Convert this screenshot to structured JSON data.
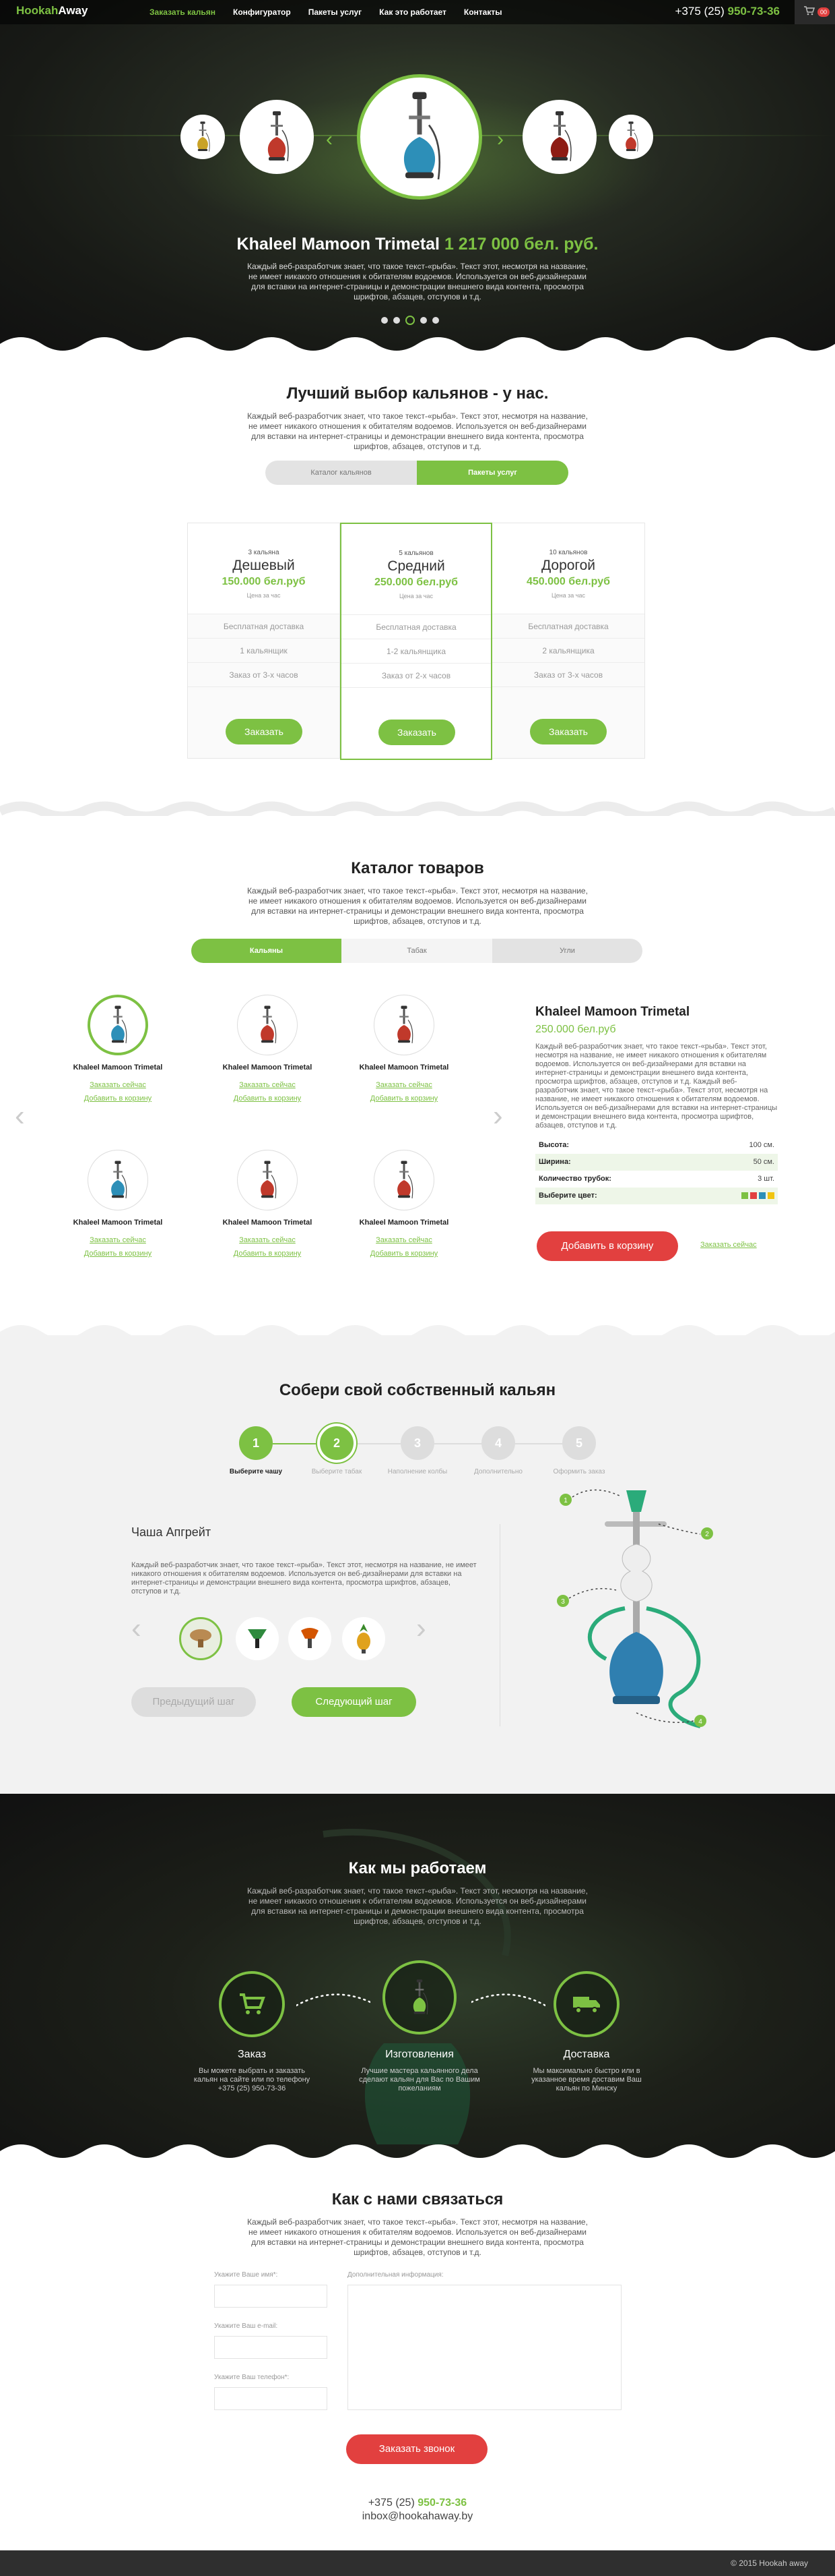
{
  "nav": {
    "logo_a": "Hookah",
    "logo_b": "Away",
    "items": [
      "Заказать кальян",
      "Конфигуратор",
      "Пакеты услуг",
      "Как это работает",
      "Контакты"
    ],
    "phone_prefix": "+375 (25) ",
    "phone_number": "950-73-36",
    "cart_count": "00"
  },
  "hero": {
    "title_name": "Khaleel Mamoon Trimetal",
    "title_price": "1 217 000 бел. руб.",
    "text": "Каждый веб-разработчик знает, что такое текст-«рыба». Текст этот, несмотря на название, не имеет никакого отношения к обитателям водоемов. Используется он веб-дизайнерами для вставки на интернет-страницы и демонстрации внешнего вида контента, просмотра шрифтов, абзацев, отступов и т.д.",
    "active_slide": 3,
    "slides": 5
  },
  "pricing": {
    "title": "Лучший выбор кальянов - у нас.",
    "text": "Каждый веб-разработчик знает, что такое текст-«рыба». Текст этот, несмотря на название, не имеет никакого отношения к обитателям водоемов. Используется он веб-дизайнерами для вставки на интернет-страницы и демонстрации внешнего вида контента, просмотра шрифтов, абзацев, отступов и т.д.",
    "tabs": [
      "Каталог кальянов",
      "Пакеты услуг"
    ],
    "active_tab": 1,
    "plans": [
      {
        "count": "3 кальяна",
        "name": "Дешевый",
        "price": "150.000 бел.руб",
        "note": "Цена за час",
        "features": [
          "Бесплатная доставка",
          "1 кальянщик",
          "Заказ от 3-х часов"
        ],
        "button": "Заказать"
      },
      {
        "count": "5 кальянов",
        "name": "Средний",
        "price": "250.000 бел.руб",
        "note": "Цена за час",
        "features": [
          "Бесплатная доставка",
          "1-2 кальянщика",
          "Заказ от 2-х часов"
        ],
        "button": "Заказать"
      },
      {
        "count": "10 кальянов",
        "name": "Дорогой",
        "price": "450.000 бел.руб",
        "note": "Цена за час",
        "features": [
          "Бесплатная доставка",
          "2 кальянщика",
          "Заказ от 3-х часов"
        ],
        "button": "Заказать"
      }
    ]
  },
  "catalog": {
    "title": "Каталог товаров",
    "text": "Каждый веб-разработчик знает, что такое текст-«рыба». Текст этот, несмотря на название, не имеет никакого отношения к обитателям водоемов. Используется он веб-дизайнерами для вставки на интернет-страницы и демонстрации внешнего вида контента, просмотра шрифтов, абзацев, отступов и т.д.",
    "tabs": [
      "Кальяны",
      "Табак",
      "Угли"
    ],
    "active_tab": 0,
    "products": [
      {
        "name": "Khaleel Mamoon Trimetal",
        "link1": "Заказать сейчас",
        "link2": "Добавить в корзину",
        "color": "#2d8fb8",
        "selected": true
      },
      {
        "name": "Khaleel Mamoon Trimetal",
        "link1": "Заказать сейчас",
        "link2": "Добавить в корзину",
        "color": "#c0392b",
        "selected": false
      },
      {
        "name": "Khaleel Mamoon Trimetal",
        "link1": "Заказать сейчас",
        "link2": "Добавить в корзину",
        "color": "#c0392b",
        "selected": false
      },
      {
        "name": "Khaleel Mamoon Trimetal",
        "link1": "Заказать сейчас",
        "link2": "Добавить в корзину",
        "color": "#2d8fb8",
        "selected": false
      },
      {
        "name": "Khaleel Mamoon Trimetal",
        "link1": "Заказать сейчас",
        "link2": "Добавить в корзину",
        "color": "#c0392b",
        "selected": false
      },
      {
        "name": "Khaleel Mamoon Trimetal",
        "link1": "Заказать сейчас",
        "link2": "Добавить в корзину",
        "color": "#c0392b",
        "selected": false
      }
    ],
    "detail": {
      "title": "Khaleel Mamoon Trimetal",
      "price": "250.000 бел.руб",
      "text": "Каждый веб-разработчик знает, что такое текст-«рыба». Текст этот, несмотря на название, не имеет никакого отношения к обитателям водоемов. Используется он веб-дизайнерами для вставки на интернет-страницы и демонстрации внешнего вида контента, просмотра шрифтов, абзацев, отступов и т.д. Каждый веб-разработчик знает, что такое текст-«рыба». Текст этот, несмотря на название, не имеет никакого отношения к обитателям водоемов. Используется он веб-дизайнерами для вставки на интернет-страницы и демонстрации внешнего вида контента, просмотра шрифтов, абзацев, отступов и т.д.",
      "rows": [
        {
          "label": "Высота:",
          "value": "100 см."
        },
        {
          "label": "Ширина:",
          "value": "50 см."
        },
        {
          "label": "Количество трубок:",
          "value": "3 шт."
        },
        {
          "label": "Выберите цвет:",
          "value": ""
        }
      ],
      "swatches": [
        "#7dc143",
        "#e2403f",
        "#2d8fb8",
        "#f1c40f"
      ],
      "button": "Добавить в корзину",
      "link": "Заказать сейчас"
    }
  },
  "configurator": {
    "title": "Собери свой собственный кальян",
    "steps": [
      {
        "num": "1",
        "label": "Выберите чашу"
      },
      {
        "num": "2",
        "label": "Выберите табак"
      },
      {
        "num": "3",
        "label": "Наполнение колбы"
      },
      {
        "num": "4",
        "label": "Дополнительно"
      },
      {
        "num": "5",
        "label": "Оформить заказ"
      }
    ],
    "current_step": 1,
    "bowl_title": "Чаша Апгрейт",
    "bowl_text": "Каждый веб-разработчик знает, что такое текст-«рыба». Текст этот, несмотря на название, не имеет никакого отношения к обитателям водоемов. Используется он веб-дизайнерами для вставки на интернет-страницы и демонстрации внешнего вида контента, просмотра шрифтов, абзацев, отступов и т.д.",
    "prev": "Предыдущий шаг",
    "next": "Следующий шаг",
    "hotspots": [
      "1",
      "2",
      "3",
      "4"
    ]
  },
  "how": {
    "title": "Как мы работаем",
    "text": "Каждый веб-разработчик знает, что такое текст-«рыба». Текст этот, несмотря на название, не имеет никакого отношения к обитателям водоемов. Используется он веб-дизайнерами для вставки на интернет-страницы и демонстрации внешнего вида контента, просмотра шрифтов, абзацев, отступов и т.д.",
    "items": [
      {
        "name": "Заказ",
        "desc": "Вы можете выбрать и заказать кальян на сайте или по телефону +375 (25) 950-73-36"
      },
      {
        "name": "Изготовления",
        "desc": "Лучшие мастера кальянного дела сделают кальян для Вас по Вашим пожеланиям"
      },
      {
        "name": "Доставка",
        "desc": "Мы максимально быстро или в указанное время доставим Ваш кальян по Минску"
      }
    ]
  },
  "contact": {
    "title": "Как с нами связаться",
    "text": "Каждый веб-разработчик знает, что такое текст-«рыба». Текст этот, несмотря на название, не имеет никакого отношения к обитателям водоемов. Используется он веб-дизайнерами для вставки на интернет-страницы и демонстрации внешнего вида контента, просмотра шрифтов, абзацев, отступов и т.д.",
    "name_label": "Укажите Ваше имя*:",
    "email_label": "Укажите Ваш e-mail:",
    "phone_label": "Укажите Ваш телефон*:",
    "info_label": "Дополнительная информация:",
    "button": "Заказать звонок",
    "phone_prefix": "+375 (25) ",
    "phone_number": "950-73-36",
    "email": "inbox@hookahaway.by"
  },
  "footer": {
    "copyright": "© 2015  Hookah away"
  }
}
